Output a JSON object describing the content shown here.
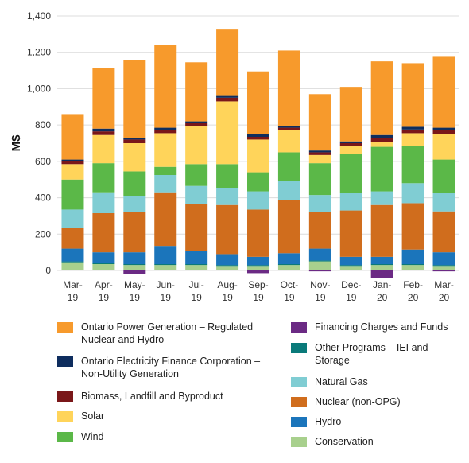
{
  "chart_data": {
    "type": "bar",
    "stacked": true,
    "ylabel": "M$",
    "ylim": [
      0,
      1400
    ],
    "yticks": [
      "0",
      "200",
      "400",
      "600",
      "800",
      "1,000",
      "1,200",
      "1,400"
    ],
    "ytick_values": [
      0,
      200,
      400,
      600,
      800,
      1000,
      1200,
      1400
    ],
    "grid": true,
    "categories": [
      [
        "Mar-",
        "19"
      ],
      [
        "Apr-",
        "19"
      ],
      [
        "May-",
        "19"
      ],
      [
        "Jun-",
        "19"
      ],
      [
        "Jul-",
        "19"
      ],
      [
        "Aug-",
        "19"
      ],
      [
        "Sep-",
        "19"
      ],
      [
        "Oct-",
        "19"
      ],
      [
        "Nov-",
        "19"
      ],
      [
        "Dec-",
        "19"
      ],
      [
        "Jan-",
        "20"
      ],
      [
        "Feb-",
        "20"
      ],
      [
        "Mar-",
        "20"
      ]
    ],
    "series": [
      {
        "name": "Conservation",
        "color": "#a8d08d",
        "values": [
          45,
          35,
          30,
          30,
          30,
          25,
          25,
          30,
          50,
          25,
          30,
          30,
          25
        ]
      },
      {
        "name": "Other Programs – IEI and Storage",
        "color": "#0a7a7a",
        "values": [
          5,
          5,
          5,
          5,
          5,
          5,
          5,
          5,
          5,
          5,
          5,
          5,
          5
        ]
      },
      {
        "name": "Hydro",
        "color": "#1b75bb",
        "values": [
          70,
          60,
          65,
          100,
          70,
          60,
          45,
          60,
          65,
          45,
          40,
          80,
          70
        ]
      },
      {
        "name": "Nuclear (non-OPG)",
        "color": "#d06d1d",
        "values": [
          115,
          215,
          220,
          295,
          260,
          270,
          260,
          290,
          200,
          255,
          285,
          255,
          225
        ]
      },
      {
        "name": "Natural Gas",
        "color": "#80cdd3",
        "values": [
          100,
          115,
          90,
          95,
          100,
          95,
          100,
          105,
          95,
          95,
          75,
          110,
          100
        ]
      },
      {
        "name": "Wind",
        "color": "#5bb848",
        "values": [
          165,
          160,
          135,
          45,
          120,
          130,
          105,
          160,
          175,
          215,
          245,
          205,
          185
        ]
      },
      {
        "name": "Solar",
        "color": "#ffd45a",
        "values": [
          85,
          155,
          155,
          185,
          210,
          345,
          180,
          120,
          45,
          45,
          25,
          70,
          140
        ]
      },
      {
        "name": "Biomass, Landfill and Byproduct",
        "color": "#7a1719",
        "values": [
          15,
          20,
          20,
          15,
          15,
          20,
          15,
          15,
          15,
          15,
          25,
          20,
          20
        ]
      },
      {
        "name": "Ontario Electricity Finance Corporation – Non-Utility Generation",
        "color": "#0e2d5e",
        "values": [
          10,
          15,
          10,
          15,
          10,
          10,
          15,
          10,
          10,
          10,
          15,
          15,
          15
        ]
      },
      {
        "name": "Ontario Power Generation – Regulated Nuclear and Hydro",
        "color": "#f79a2c",
        "values": [
          250,
          335,
          425,
          455,
          325,
          365,
          345,
          415,
          310,
          300,
          405,
          350,
          390
        ]
      },
      {
        "name": "Financing Charges and Funds",
        "color": "#6b2a84",
        "values": [
          0,
          0,
          -20,
          0,
          0,
          0,
          -15,
          0,
          -5,
          0,
          -40,
          0,
          -5
        ]
      }
    ]
  },
  "legend": {
    "left": [
      {
        "label": "Ontario Power Generation – Regulated Nuclear and Hydro",
        "color": "#f79a2c"
      },
      {
        "label": "Ontario Electricity Finance Corporation – Non-Utility Generation",
        "color": "#0e2d5e"
      },
      {
        "label": "Biomass, Landfill and Byproduct",
        "color": "#7a1719"
      },
      {
        "label": "Solar",
        "color": "#ffd45a"
      },
      {
        "label": "Wind",
        "color": "#5bb848"
      }
    ],
    "right": [
      {
        "label": "Financing Charges and Funds",
        "color": "#6b2a84"
      },
      {
        "label": "Other Programs – IEI and Storage",
        "color": "#0a7a7a"
      },
      {
        "label": "Natural Gas",
        "color": "#80cdd3"
      },
      {
        "label": "Nuclear (non-OPG)",
        "color": "#d06d1d"
      },
      {
        "label": "Hydro",
        "color": "#1b75bb"
      },
      {
        "label": "Conservation",
        "color": "#a8d08d"
      }
    ]
  }
}
